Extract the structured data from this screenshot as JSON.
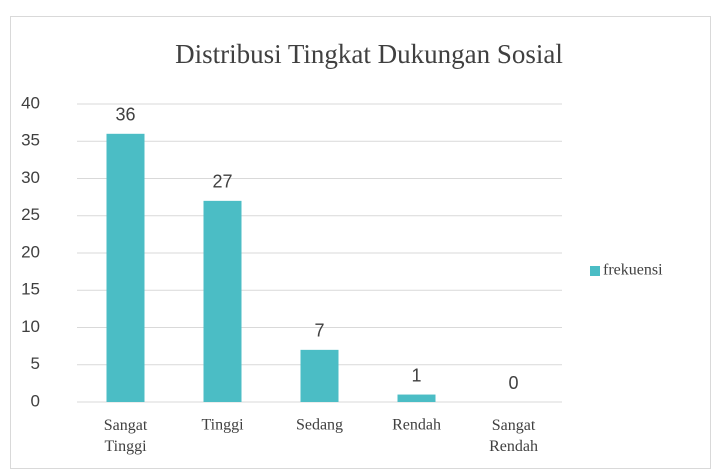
{
  "chart_data": {
    "type": "bar",
    "title": "Distribusi Tingkat Dukungan Sosial",
    "categories": [
      "Sangat Tinggi",
      "Tinggi",
      "Sedang",
      "Rendah",
      "Sangat Rendah"
    ],
    "series": [
      {
        "name": "frekuensi",
        "color": "#4bbdc5",
        "values": [
          36,
          27,
          7,
          1,
          0
        ]
      }
    ],
    "ylim": [
      0,
      40
    ],
    "yticks": [
      0,
      5,
      10,
      15,
      20,
      25,
      30,
      35,
      40
    ],
    "grid": true,
    "legend": "right"
  }
}
